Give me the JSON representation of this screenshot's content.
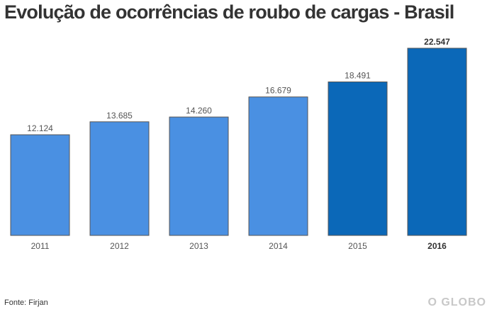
{
  "chart_data": {
    "type": "bar",
    "title": "Evolução de ocorrências de roubo de cargas - Brasil",
    "categories": [
      "2011",
      "2012",
      "2013",
      "2014",
      "2015",
      "2016"
    ],
    "values": [
      12124,
      13685,
      14260,
      16679,
      18491,
      22547
    ],
    "value_labels": [
      "12.124",
      "13.685",
      "14.260",
      "16.679",
      "18.491",
      "22.547"
    ],
    "highlighted_categories": [
      "2015",
      "2016"
    ],
    "bold_categories": [
      "2016"
    ],
    "ylim": [
      0,
      22547
    ],
    "xlabel": "",
    "ylabel": "",
    "grid": false,
    "colors": {
      "bar": "#4a90e2",
      "bar_highlight": "#0b68b8",
      "bar_border": "#555555",
      "label": "#555555",
      "label_bold": "#333333"
    }
  },
  "footer": {
    "source": "Fonte: Firjan",
    "brand": "O GLOBO"
  }
}
